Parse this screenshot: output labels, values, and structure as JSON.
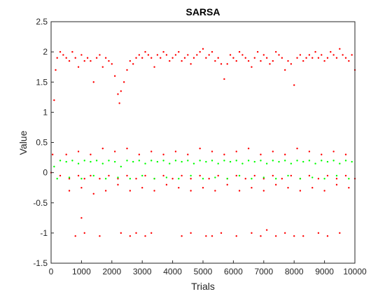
{
  "chart_data": {
    "type": "scatter",
    "title": "SARSA",
    "xlabel": "Trials",
    "ylabel": "Value",
    "xlim": [
      0,
      10000
    ],
    "ylim": [
      -1.5,
      2.5
    ],
    "xticks": [
      0,
      1000,
      2000,
      3000,
      4000,
      5000,
      6000,
      7000,
      8000,
      9000,
      10000
    ],
    "yticks": [
      -1.5,
      -1,
      -0.5,
      0,
      0.5,
      1,
      1.5,
      2,
      2.5
    ],
    "xtick_labels": [
      "0",
      "1000",
      "2000",
      "3000",
      "4000",
      "5000",
      "6000",
      "7000",
      "8000",
      "9000",
      "10000"
    ],
    "ytick_labels": [
      "-1.5",
      "-1",
      "-0.5",
      "0",
      "0.5",
      "1",
      "1.5",
      "2",
      "2.5"
    ],
    "grid": false,
    "legend": "none",
    "series": [
      {
        "color": "#ff0000",
        "marker": "dot",
        "x": [
          0,
          50,
          100,
          150,
          200,
          300,
          400,
          500,
          600,
          700,
          800,
          900,
          1000,
          1100,
          1200,
          1300,
          1400,
          1500,
          1600,
          1700,
          1800,
          1900,
          2000,
          2100,
          2200,
          2250,
          2300,
          2400,
          2500,
          2600,
          2700,
          2800,
          2900,
          3000,
          3100,
          3200,
          3300,
          3400,
          3500,
          3600,
          3700,
          3800,
          3900,
          4000,
          4100,
          4200,
          4300,
          4400,
          4500,
          4600,
          4700,
          4800,
          4900,
          5000,
          5100,
          5200,
          5300,
          5400,
          5500,
          5600,
          5700,
          5800,
          5900,
          6000,
          6100,
          6200,
          6300,
          6400,
          6500,
          6600,
          6700,
          6800,
          6900,
          7000,
          7100,
          7200,
          7300,
          7400,
          7500,
          7600,
          7700,
          7800,
          7900,
          8000,
          8100,
          8200,
          8300,
          8400,
          8500,
          8600,
          8700,
          8800,
          8900,
          9000,
          9100,
          9200,
          9300,
          9400,
          9500,
          9600,
          9700,
          9800,
          9900,
          10000
        ],
        "y": [
          0.0,
          0.3,
          1.2,
          1.7,
          1.9,
          2.0,
          1.95,
          1.9,
          1.85,
          2.0,
          1.9,
          1.75,
          1.95,
          1.85,
          1.9,
          1.85,
          1.5,
          1.9,
          1.95,
          1.75,
          1.9,
          1.85,
          1.8,
          1.6,
          1.3,
          1.15,
          1.35,
          1.5,
          1.7,
          1.85,
          1.8,
          1.9,
          1.95,
          1.9,
          2.0,
          1.95,
          1.9,
          1.75,
          1.95,
          1.9,
          2.0,
          1.95,
          1.85,
          1.9,
          1.95,
          2.0,
          1.85,
          1.9,
          1.95,
          1.8,
          1.9,
          1.95,
          2.0,
          2.05,
          1.9,
          1.95,
          2.0,
          1.85,
          1.9,
          1.8,
          1.55,
          1.8,
          1.95,
          1.9,
          1.85,
          2.0,
          1.95,
          1.9,
          1.85,
          1.75,
          1.9,
          2.0,
          1.85,
          1.95,
          1.9,
          1.8,
          1.85,
          2.0,
          1.95,
          1.9,
          1.7,
          1.85,
          1.8,
          1.45,
          1.9,
          1.95,
          1.85,
          1.9,
          1.95,
          1.9,
          2.0,
          1.9,
          1.95,
          1.85,
          1.9,
          2.0,
          1.95,
          1.9,
          2.05,
          1.95,
          1.9,
          1.85,
          1.95,
          1.7
        ]
      },
      {
        "color": "#ff0000",
        "marker": "dot",
        "x": [
          300,
          600,
          900,
          1100,
          1300,
          1600,
          1900,
          2200,
          2500,
          2800,
          3100,
          3400,
          3700,
          4000,
          4300,
          4600,
          4900,
          5200,
          5500,
          5800,
          6100,
          6400,
          6700,
          7000,
          7300,
          7600,
          7900,
          8200,
          8500,
          8800,
          9100,
          9400,
          9700,
          10000
        ],
        "y": [
          -0.05,
          -0.1,
          -0.05,
          -0.1,
          -0.05,
          -0.1,
          -0.05,
          -0.1,
          -0.05,
          -0.1,
          -0.05,
          -0.1,
          -0.05,
          -0.1,
          -0.05,
          -0.1,
          -0.05,
          -0.1,
          -0.05,
          -0.1,
          -0.05,
          -0.1,
          -0.05,
          -0.1,
          -0.05,
          -0.1,
          -0.05,
          -0.1,
          -0.05,
          -0.1,
          -0.05,
          -0.1,
          -0.05,
          -0.1
        ]
      },
      {
        "color": "#ff0000",
        "marker": "dot",
        "x": [
          500,
          900,
          1300,
          1700,
          2100,
          2500,
          2900,
          3300,
          3700,
          4100,
          4500,
          4900,
          5300,
          5700,
          6100,
          6500,
          6900,
          7300,
          7700,
          8100,
          8500,
          8900,
          9300,
          9700
        ],
        "y": [
          0.3,
          0.35,
          0.3,
          0.4,
          0.35,
          0.4,
          0.3,
          0.35,
          0.3,
          0.35,
          0.3,
          0.4,
          0.35,
          0.3,
          0.35,
          0.4,
          0.3,
          0.35,
          0.3,
          0.4,
          0.35,
          0.3,
          0.35,
          0.3
        ]
      },
      {
        "color": "#ff0000",
        "marker": "dot",
        "x": [
          600,
          1000,
          1400,
          1800,
          2200,
          2600,
          3000,
          3400,
          3800,
          4200,
          4600,
          5000,
          5400,
          5800,
          6200,
          6600,
          7000,
          7400,
          7800,
          8200,
          8600,
          9000,
          9400,
          9800
        ],
        "y": [
          -0.3,
          -0.25,
          -0.35,
          -0.3,
          -0.2,
          -0.3,
          -0.25,
          -0.3,
          -0.2,
          -0.25,
          -0.3,
          -0.25,
          -0.3,
          -0.2,
          -0.3,
          -0.25,
          -0.3,
          -0.2,
          -0.25,
          -0.3,
          -0.25,
          -0.3,
          -0.2,
          -0.25
        ]
      },
      {
        "color": "#ff0000",
        "marker": "dot",
        "x": [
          800,
          1000,
          1100,
          1600,
          2300,
          2600,
          2800,
          3100,
          3300,
          4300,
          4600,
          5100,
          5300,
          5600,
          6100,
          6600,
          6900,
          7100,
          7400,
          7700,
          8000,
          8300,
          8800,
          9100,
          9500
        ],
        "y": [
          -1.05,
          -0.75,
          -1.0,
          -1.05,
          -1.0,
          -1.05,
          -1.0,
          -1.05,
          -1.0,
          -1.05,
          -1.0,
          -1.05,
          -1.05,
          -1.0,
          -1.05,
          -1.0,
          -1.05,
          -0.95,
          -1.05,
          -1.0,
          -1.05,
          -1.05,
          -1.0,
          -1.05,
          -1.0
        ]
      },
      {
        "color": "#00ff00",
        "marker": "dot",
        "x": [
          100,
          300,
          500,
          700,
          900,
          1100,
          1300,
          1500,
          1700,
          1900,
          2100,
          2300,
          2500,
          2700,
          2900,
          3100,
          3300,
          3500,
          3700,
          3900,
          4100,
          4300,
          4500,
          4700,
          4900,
          5100,
          5300,
          5500,
          5700,
          5900,
          6100,
          6300,
          6500,
          6700,
          6900,
          7100,
          7300,
          7500,
          7700,
          7900,
          8100,
          8300,
          8500,
          8700,
          8900,
          9100,
          9300,
          9500,
          9700,
          9900
        ],
        "y": [
          0.1,
          0.2,
          0.18,
          0.2,
          0.15,
          0.2,
          0.18,
          0.2,
          0.15,
          0.2,
          0.18,
          0.1,
          0.2,
          0.18,
          0.2,
          0.15,
          0.2,
          0.18,
          0.2,
          0.15,
          0.2,
          0.18,
          0.2,
          0.15,
          0.2,
          0.18,
          0.2,
          0.15,
          0.2,
          0.18,
          0.2,
          0.15,
          0.2,
          0.18,
          0.2,
          0.15,
          0.2,
          0.18,
          0.2,
          0.15,
          0.2,
          0.18,
          0.2,
          0.15,
          0.2,
          0.18,
          0.2,
          0.15,
          0.2,
          0.18
        ]
      },
      {
        "color": "#00ff00",
        "marker": "dot",
        "x": [
          200,
          600,
          1000,
          1400,
          1800,
          2200,
          2600,
          3000,
          3400,
          3800,
          4200,
          4600,
          5000,
          5400,
          5800,
          6200,
          6600,
          7000,
          7400,
          7800,
          8200,
          8600,
          9000,
          9400,
          9800
        ],
        "y": [
          -0.1,
          -0.08,
          -0.1,
          -0.05,
          -0.1,
          -0.08,
          -0.1,
          -0.05,
          -0.1,
          -0.08,
          -0.1,
          -0.05,
          -0.1,
          -0.08,
          -0.1,
          -0.05,
          -0.1,
          -0.08,
          -0.1,
          -0.05,
          -0.1,
          -0.08,
          -0.1,
          -0.05,
          -0.1
        ]
      }
    ]
  }
}
